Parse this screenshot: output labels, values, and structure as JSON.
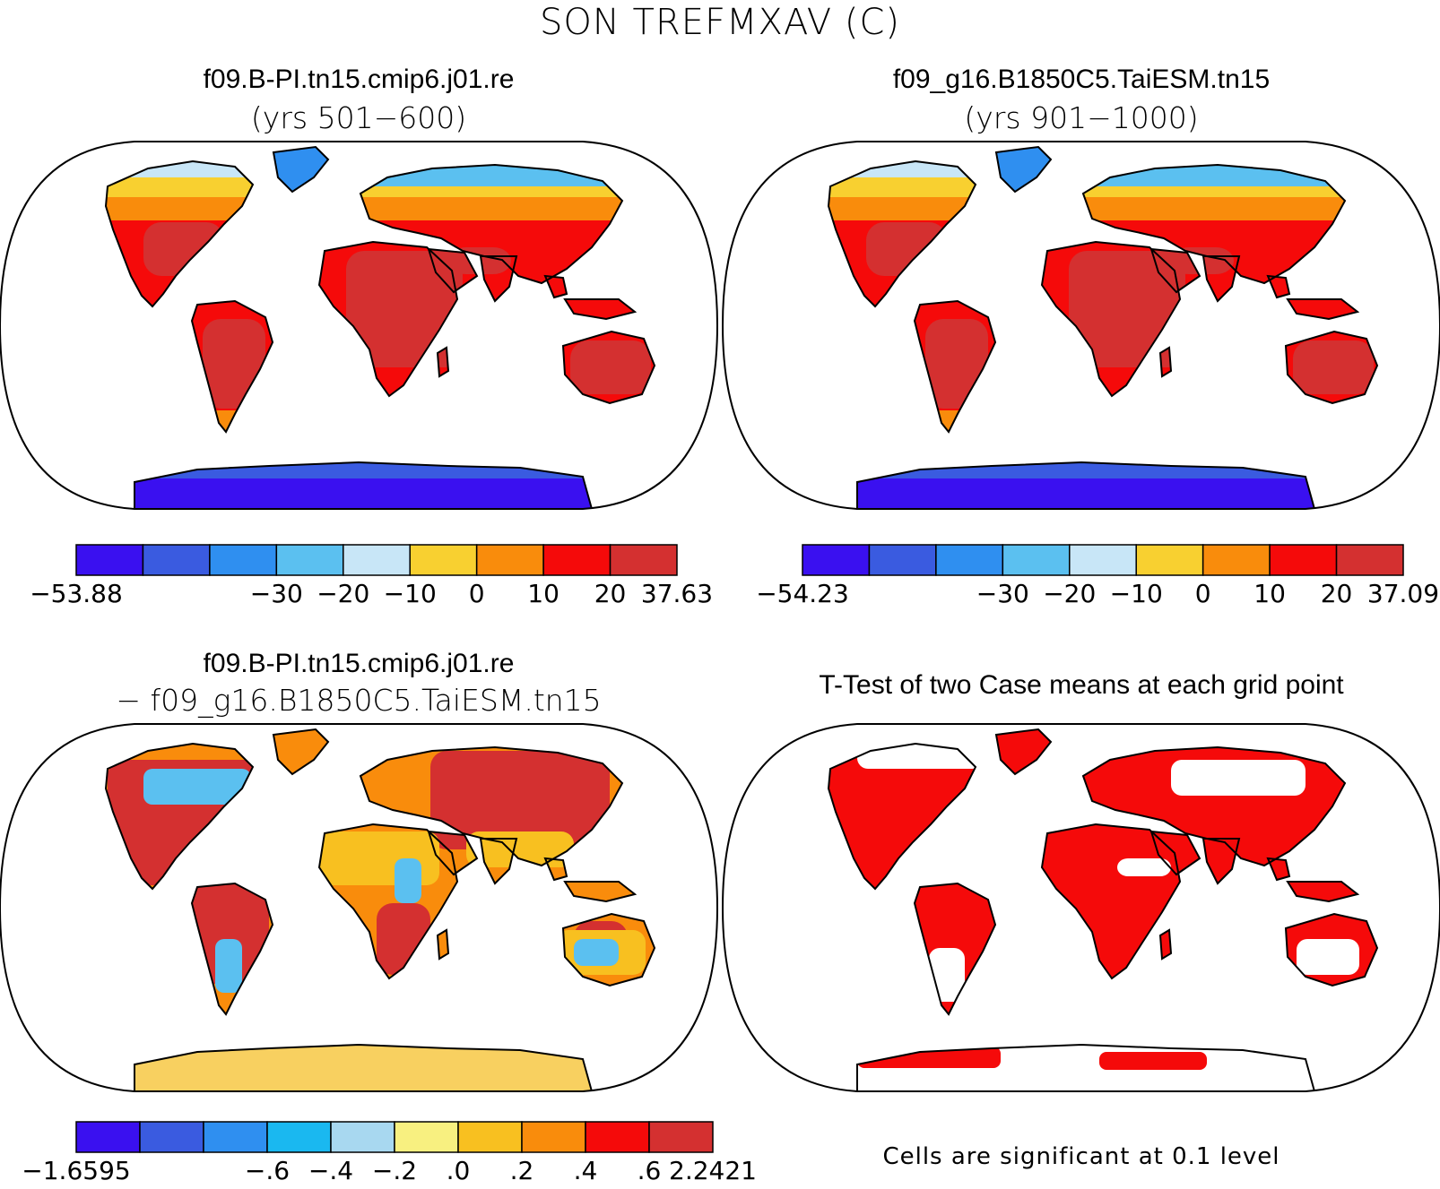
{
  "figure": {
    "title": "SON TREFMXAV (C)"
  },
  "panels": [
    {
      "id": "panel-case1",
      "title": "f09.B-PI.tn15.cmip6.j01.re",
      "subtitle": "(yrs 501−600)",
      "kind": "field",
      "colorbar": {
        "colors": [
          "#3a10f0",
          "#3a5be0",
          "#2f8ff0",
          "#5bc0f0",
          "#c8e6f7",
          "#f8d030",
          "#f98c0c",
          "#f50a0a",
          "#d43030"
        ],
        "labels": [
          "−53.88",
          "−30",
          "−20",
          "−10",
          "0",
          "10",
          "20",
          "37.63"
        ]
      }
    },
    {
      "id": "panel-case2",
      "title": "f09_g16.B1850C5.TaiESM.tn15",
      "subtitle": "(yrs 901−1000)",
      "kind": "field",
      "colorbar": {
        "colors": [
          "#3a10f0",
          "#3a5be0",
          "#2f8ff0",
          "#5bc0f0",
          "#c8e6f7",
          "#f8d030",
          "#f98c0c",
          "#f50a0a",
          "#d43030"
        ],
        "labels": [
          "−54.23",
          "−30",
          "−20",
          "−10",
          "0",
          "10",
          "20",
          "37.09"
        ]
      }
    },
    {
      "id": "panel-diff",
      "title": "f09.B-PI.tn15.cmip6.j01.re",
      "subtitle": "− f09_g16.B1850C5.TaiESM.tn15",
      "kind": "diff",
      "colorbar": {
        "colors": [
          "#3a10f0",
          "#3a5be0",
          "#2f8ff0",
          "#1ab8f0",
          "#a8d8f0",
          "#f8f080",
          "#f8c020",
          "#f98c0c",
          "#f50a0a",
          "#d43030"
        ],
        "labels": [
          "−1.6595",
          "−.6",
          "−.4",
          "−.2",
          ".0",
          ".2",
          ".4",
          ".6",
          "2.2421"
        ]
      }
    },
    {
      "id": "panel-ttest",
      "title": "T-Test of two Case means at each grid point",
      "kind": "ttest",
      "note": "Cells are significant at 0.1 level"
    }
  ]
}
